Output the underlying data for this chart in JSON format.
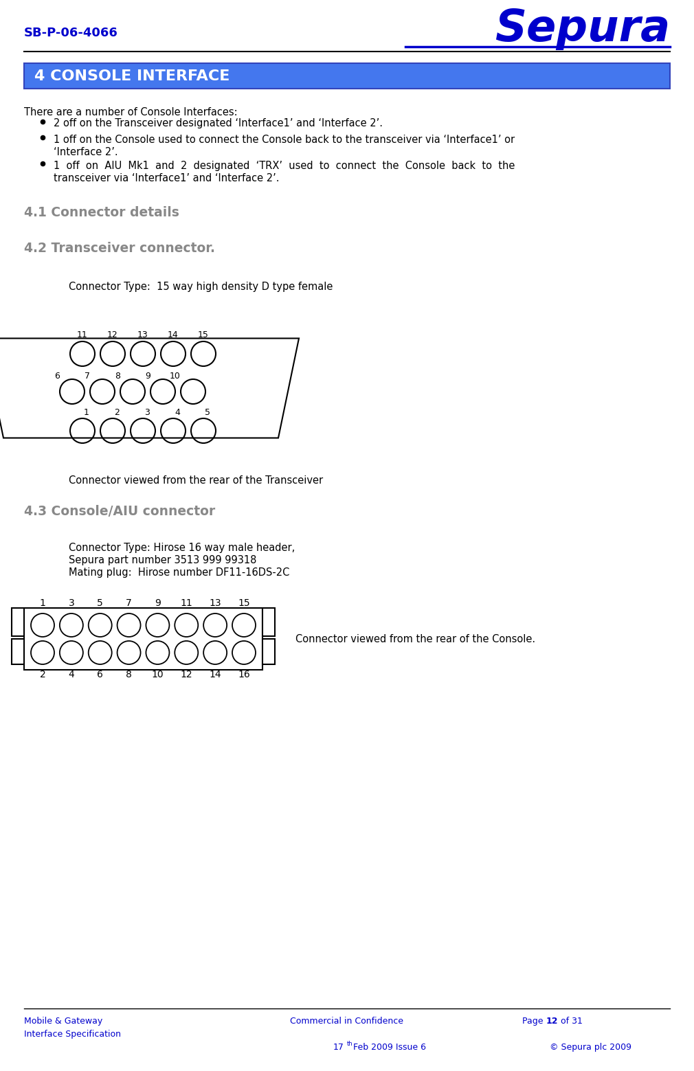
{
  "title_left": "SB-P-06-4066",
  "title_right": "Sepura",
  "section_banner_text": "4 CONSOLE INTERFACE",
  "intro_text": "There are a number of Console Interfaces:",
  "bullet1": "2 off on the Transceiver designated ‘Interface1’ and ‘Interface 2’.",
  "bullet2_l1": "1 off on the Console used to connect the Console back to the transceiver via ‘Interface1’ or",
  "bullet2_l2": "‘Interface 2’.",
  "bullet3_l1": "1  off  on  AIU  Mk1  and  2  designated  ‘TRX’  used  to  connect  the  Console  back  to  the",
  "bullet3_l2": "transceiver via ‘Interface1’ and ‘Interface 2’.",
  "section41": "4.1 Connector details",
  "section42": "4.2 Transceiver connector.",
  "conn_type_42": "Connector Type:  15 way high density D type female",
  "conn_cap_42": "Connector viewed from the rear of the Transceiver",
  "section43": "4.3 Console/AIU connector",
  "conn_type_43_1": "Connector Type: Hirose 16 way male header,",
  "conn_type_43_2": "Sepura part number 3513 999 99318",
  "conn_type_43_3": "Mating plug:  Hirose number DF11-16DS-2C",
  "conn_cap_43": "Connector viewed from the rear of the Console.",
  "footer_left": "Mobile & Gateway\nInterface Specification",
  "footer_c1": "Commercial in Confidence",
  "footer_c2": "17",
  "footer_c2b": "th",
  "footer_c2c": " Feb 2009 Issue 6",
  "footer_r1a": "Page ",
  "footer_r1b": "12",
  "footer_r1c": " of 31",
  "footer_r2": "© Sepura plc 2009",
  "blue": "#0000CC",
  "banner_blue": "#4477EE",
  "gray": "#888888"
}
